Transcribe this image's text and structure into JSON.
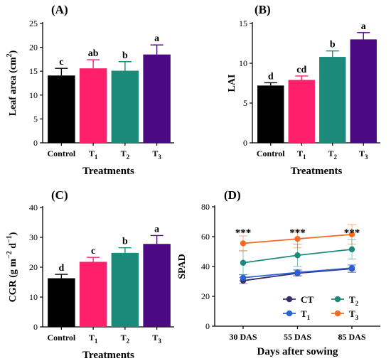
{
  "chart_data": [
    {
      "panel_label": "(A)",
      "type": "bar",
      "categories": [
        "Control",
        "T1",
        "T2",
        "T3"
      ],
      "category_labels": [
        {
          "base": "Control",
          "sub": ""
        },
        {
          "base": "T",
          "sub": "1"
        },
        {
          "base": "T",
          "sub": "2"
        },
        {
          "base": "T",
          "sub": "3"
        }
      ],
      "values": [
        14.1,
        15.6,
        15.1,
        18.5
      ],
      "errors": [
        1.5,
        1.8,
        1.9,
        2.0
      ],
      "letters": [
        "c",
        "ab",
        "b",
        "a"
      ],
      "colors": [
        "#000000",
        "#ff1f6b",
        "#1b8a7a",
        "#4b0a82"
      ],
      "xlabel": "Treatments",
      "ylabel": {
        "base": "Leaf area (cm",
        "sup": "2",
        "tail": ")"
      },
      "ylim": [
        0,
        25
      ],
      "yticks": [
        0,
        5,
        10,
        15,
        20,
        25
      ],
      "grid": false
    },
    {
      "panel_label": "(B)",
      "type": "bar",
      "categories": [
        "Control",
        "T1",
        "T2",
        "T3"
      ],
      "category_labels": [
        {
          "base": "Control",
          "sub": ""
        },
        {
          "base": "T",
          "sub": "1"
        },
        {
          "base": "T",
          "sub": "2"
        },
        {
          "base": "T",
          "sub": "3"
        }
      ],
      "values": [
        7.2,
        7.9,
        10.8,
        13.0
      ],
      "errors": [
        0.35,
        0.5,
        0.75,
        0.85
      ],
      "letters": [
        "d",
        "cd",
        "b",
        "a"
      ],
      "colors": [
        "#000000",
        "#ff1f6b",
        "#1b8a7a",
        "#4b0a82"
      ],
      "xlabel": "Treatments",
      "ylabel": {
        "base": "LAI",
        "sup": "",
        "tail": ""
      },
      "ylim": [
        0,
        15
      ],
      "yticks": [
        0,
        5,
        10,
        15
      ],
      "grid": false
    },
    {
      "panel_label": "(C)",
      "type": "bar",
      "categories": [
        "Control",
        "T1",
        "T2",
        "T3"
      ],
      "category_labels": [
        {
          "base": "Control",
          "sub": ""
        },
        {
          "base": "T",
          "sub": "1"
        },
        {
          "base": "T",
          "sub": "2"
        },
        {
          "base": "T",
          "sub": "3"
        }
      ],
      "values": [
        16.3,
        21.8,
        24.8,
        27.8
      ],
      "errors": [
        1.3,
        1.5,
        1.7,
        2.8
      ],
      "letters": [
        "d",
        "c",
        "b",
        "a"
      ],
      "colors": [
        "#000000",
        "#ff1f6b",
        "#1b8a7a",
        "#4b0a82"
      ],
      "xlabel": "Treatments",
      "ylabel": {
        "base": "CGR (g m",
        "sup": "−2",
        "mid": " d",
        "sup2": "−1",
        "tail": ")"
      },
      "ylim": [
        0,
        40
      ],
      "yticks": [
        0,
        10,
        20,
        30,
        40
      ],
      "grid": false
    },
    {
      "panel_label": "(D)",
      "type": "line",
      "categories": [
        "30 DAS",
        "55 DAS",
        "85 DAS"
      ],
      "series": [
        {
          "name": "CT",
          "legend": {
            "base": "CT",
            "sub": ""
          },
          "color": "#3a2a6e",
          "values": [
            30.5,
            35.5,
            38.5
          ],
          "errors": [
            2.0,
            2.0,
            2.5
          ]
        },
        {
          "name": "T1",
          "legend": {
            "base": "T",
            "sub": "1"
          },
          "color": "#2a62d6",
          "values": [
            32.5,
            36.0,
            39.0
          ],
          "errors": [
            2.0,
            2.0,
            2.0
          ]
        },
        {
          "name": "T2",
          "legend": {
            "base": "T",
            "sub": "2"
          },
          "color": "#1b8a7a",
          "values": [
            42.5,
            47.5,
            51.5
          ],
          "errors": [
            8.0,
            7.5,
            6.5
          ]
        },
        {
          "name": "T3",
          "legend": {
            "base": "T",
            "sub": "3"
          },
          "color": "#f26b21",
          "values": [
            55.5,
            58.5,
            61.5
          ],
          "errors": [
            5.0,
            6.0,
            6.5
          ]
        }
      ],
      "annotations": [
        "***",
        "***",
        "***"
      ],
      "xlabel": "Days after sowing",
      "ylabel": {
        "base": "SPAD",
        "sup": "",
        "tail": ""
      },
      "ylim": [
        0,
        80
      ],
      "yticks": [
        0,
        20,
        40,
        60,
        80
      ],
      "legend_position": "bottom-right",
      "grid": false
    }
  ]
}
